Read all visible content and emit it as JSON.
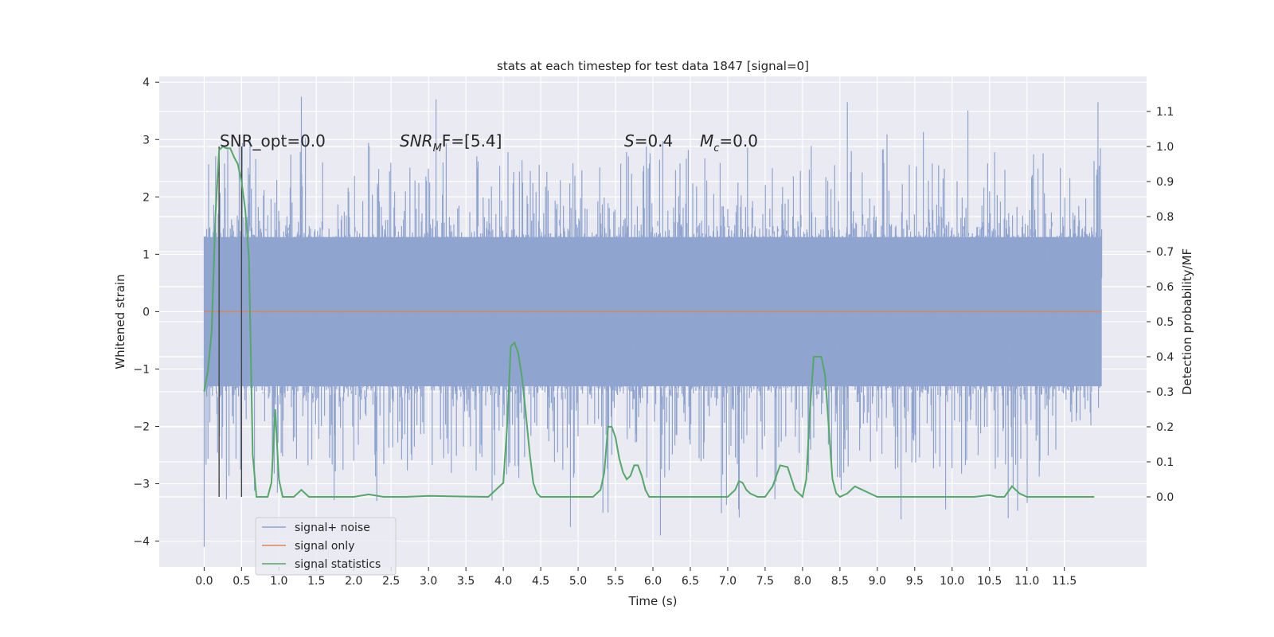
{
  "chart_data": {
    "type": "line",
    "title": "stats at each timestep for test data 1847 [signal=0]",
    "xlabel": "Time (s)",
    "ylabel": "Whitened strain",
    "ylabel_right": "Detection probability/MF",
    "xlim": [
      -0.6,
      12.6
    ],
    "ylim": [
      -4.45,
      4.1
    ],
    "ylim_right": [
      -0.2,
      1.2
    ],
    "x_ticks": [
      "0.0",
      "0.5",
      "1.0",
      "1.5",
      "2.0",
      "2.5",
      "3.0",
      "3.5",
      "4.0",
      "4.5",
      "5.0",
      "5.5",
      "6.0",
      "6.5",
      "7.0",
      "7.5",
      "8.0",
      "8.5",
      "9.0",
      "9.5",
      "10.0",
      "10.5",
      "11.0",
      "11.5"
    ],
    "y_ticks": [
      "4",
      "3",
      "2",
      "1",
      "0",
      "−1",
      "−2",
      "−3",
      "−4"
    ],
    "y_ticks_right": [
      "1.1",
      "1.0",
      "0.9",
      "0.8",
      "0.7",
      "0.6",
      "0.5",
      "0.4",
      "0.3",
      "0.2",
      "0.1",
      "0.0"
    ],
    "grid": true,
    "legend_position": "lower-left",
    "annotations": {
      "snr_opt": "SNR_opt=0.0",
      "snr_mf_prefix": "SNR",
      "snr_mf_sub": "M",
      "snr_mf_suffix": "F=[5.4]",
      "s_var": "S",
      "s_val": "=0.4",
      "mc_var": "M",
      "mc_sub": "c",
      "mc_val": "=0.0"
    },
    "vertical_markers": [
      0.2,
      0.5
    ],
    "series": [
      {
        "name": "signal+ noise",
        "color": "#8fa4cf",
        "kind": "noise",
        "x_range": [
          0.0,
          12.0
        ],
        "envelope_max": 3.7,
        "envelope_min": -4.1
      },
      {
        "name": "signal only",
        "color": "#dd8452",
        "values_x": [
          0.0,
          12.0
        ],
        "values_y": [
          0.0,
          0.0
        ]
      },
      {
        "name": "signal statistics",
        "color": "#55a868",
        "x": [
          0.0,
          0.05,
          0.1,
          0.15,
          0.2,
          0.25,
          0.3,
          0.35,
          0.4,
          0.45,
          0.5,
          0.55,
          0.6,
          0.65,
          0.7,
          0.75,
          0.8,
          0.85,
          0.9,
          0.95,
          1.0,
          1.05,
          1.1,
          1.2,
          1.3,
          1.4,
          1.5,
          1.7,
          2.0,
          2.2,
          2.4,
          2.7,
          3.0,
          3.5,
          3.8,
          4.0,
          4.05,
          4.1,
          4.15,
          4.2,
          4.25,
          4.3,
          4.35,
          4.4,
          4.45,
          4.5,
          4.55,
          4.6,
          4.7,
          4.9,
          5.2,
          5.3,
          5.35,
          5.4,
          5.45,
          5.5,
          5.55,
          5.6,
          5.65,
          5.7,
          5.75,
          5.8,
          5.85,
          5.9,
          5.95,
          6.0,
          6.1,
          6.3,
          6.6,
          7.0,
          7.1,
          7.15,
          7.2,
          7.25,
          7.3,
          7.4,
          7.5,
          7.6,
          7.7,
          7.8,
          7.9,
          8.0,
          8.05,
          8.1,
          8.15,
          8.2,
          8.25,
          8.3,
          8.35,
          8.4,
          8.45,
          8.5,
          8.6,
          8.7,
          8.8,
          8.9,
          9.0,
          9.3,
          9.6,
          10.0,
          10.3,
          10.5,
          10.6,
          10.7,
          10.8,
          10.9,
          11.0,
          11.1,
          11.3,
          11.6,
          11.9
        ],
        "y": [
          0.3,
          0.36,
          0.47,
          0.8,
          0.99,
          1.0,
          0.995,
          0.995,
          0.97,
          0.95,
          0.9,
          0.82,
          0.68,
          0.12,
          0.0,
          0.0,
          0.0,
          0.0,
          0.04,
          0.25,
          0.05,
          0.0,
          0.0,
          0.0,
          0.02,
          0.0,
          0.0,
          0.0,
          0.0,
          0.007,
          0.0,
          0.0,
          0.003,
          0.001,
          0.0,
          0.04,
          0.2,
          0.43,
          0.44,
          0.41,
          0.34,
          0.24,
          0.13,
          0.04,
          0.01,
          0.0,
          0.0,
          0.0,
          0.0,
          0.0,
          0.0,
          0.02,
          0.07,
          0.2,
          0.2,
          0.17,
          0.11,
          0.07,
          0.05,
          0.06,
          0.09,
          0.09,
          0.06,
          0.02,
          0.0,
          0.0,
          0.0,
          0.0,
          0.0,
          0.0,
          0.02,
          0.045,
          0.04,
          0.02,
          0.01,
          0.0,
          0.0,
          0.03,
          0.09,
          0.085,
          0.02,
          0.0,
          0.05,
          0.25,
          0.4,
          0.4,
          0.4,
          0.35,
          0.2,
          0.05,
          0.01,
          0.0,
          0.01,
          0.03,
          0.02,
          0.01,
          0.0,
          0.0,
          0.0,
          0.0,
          0.0,
          0.005,
          0.0,
          0.0,
          0.03,
          0.01,
          0.0,
          0.0,
          0.0,
          0.0,
          0.0
        ]
      }
    ]
  }
}
